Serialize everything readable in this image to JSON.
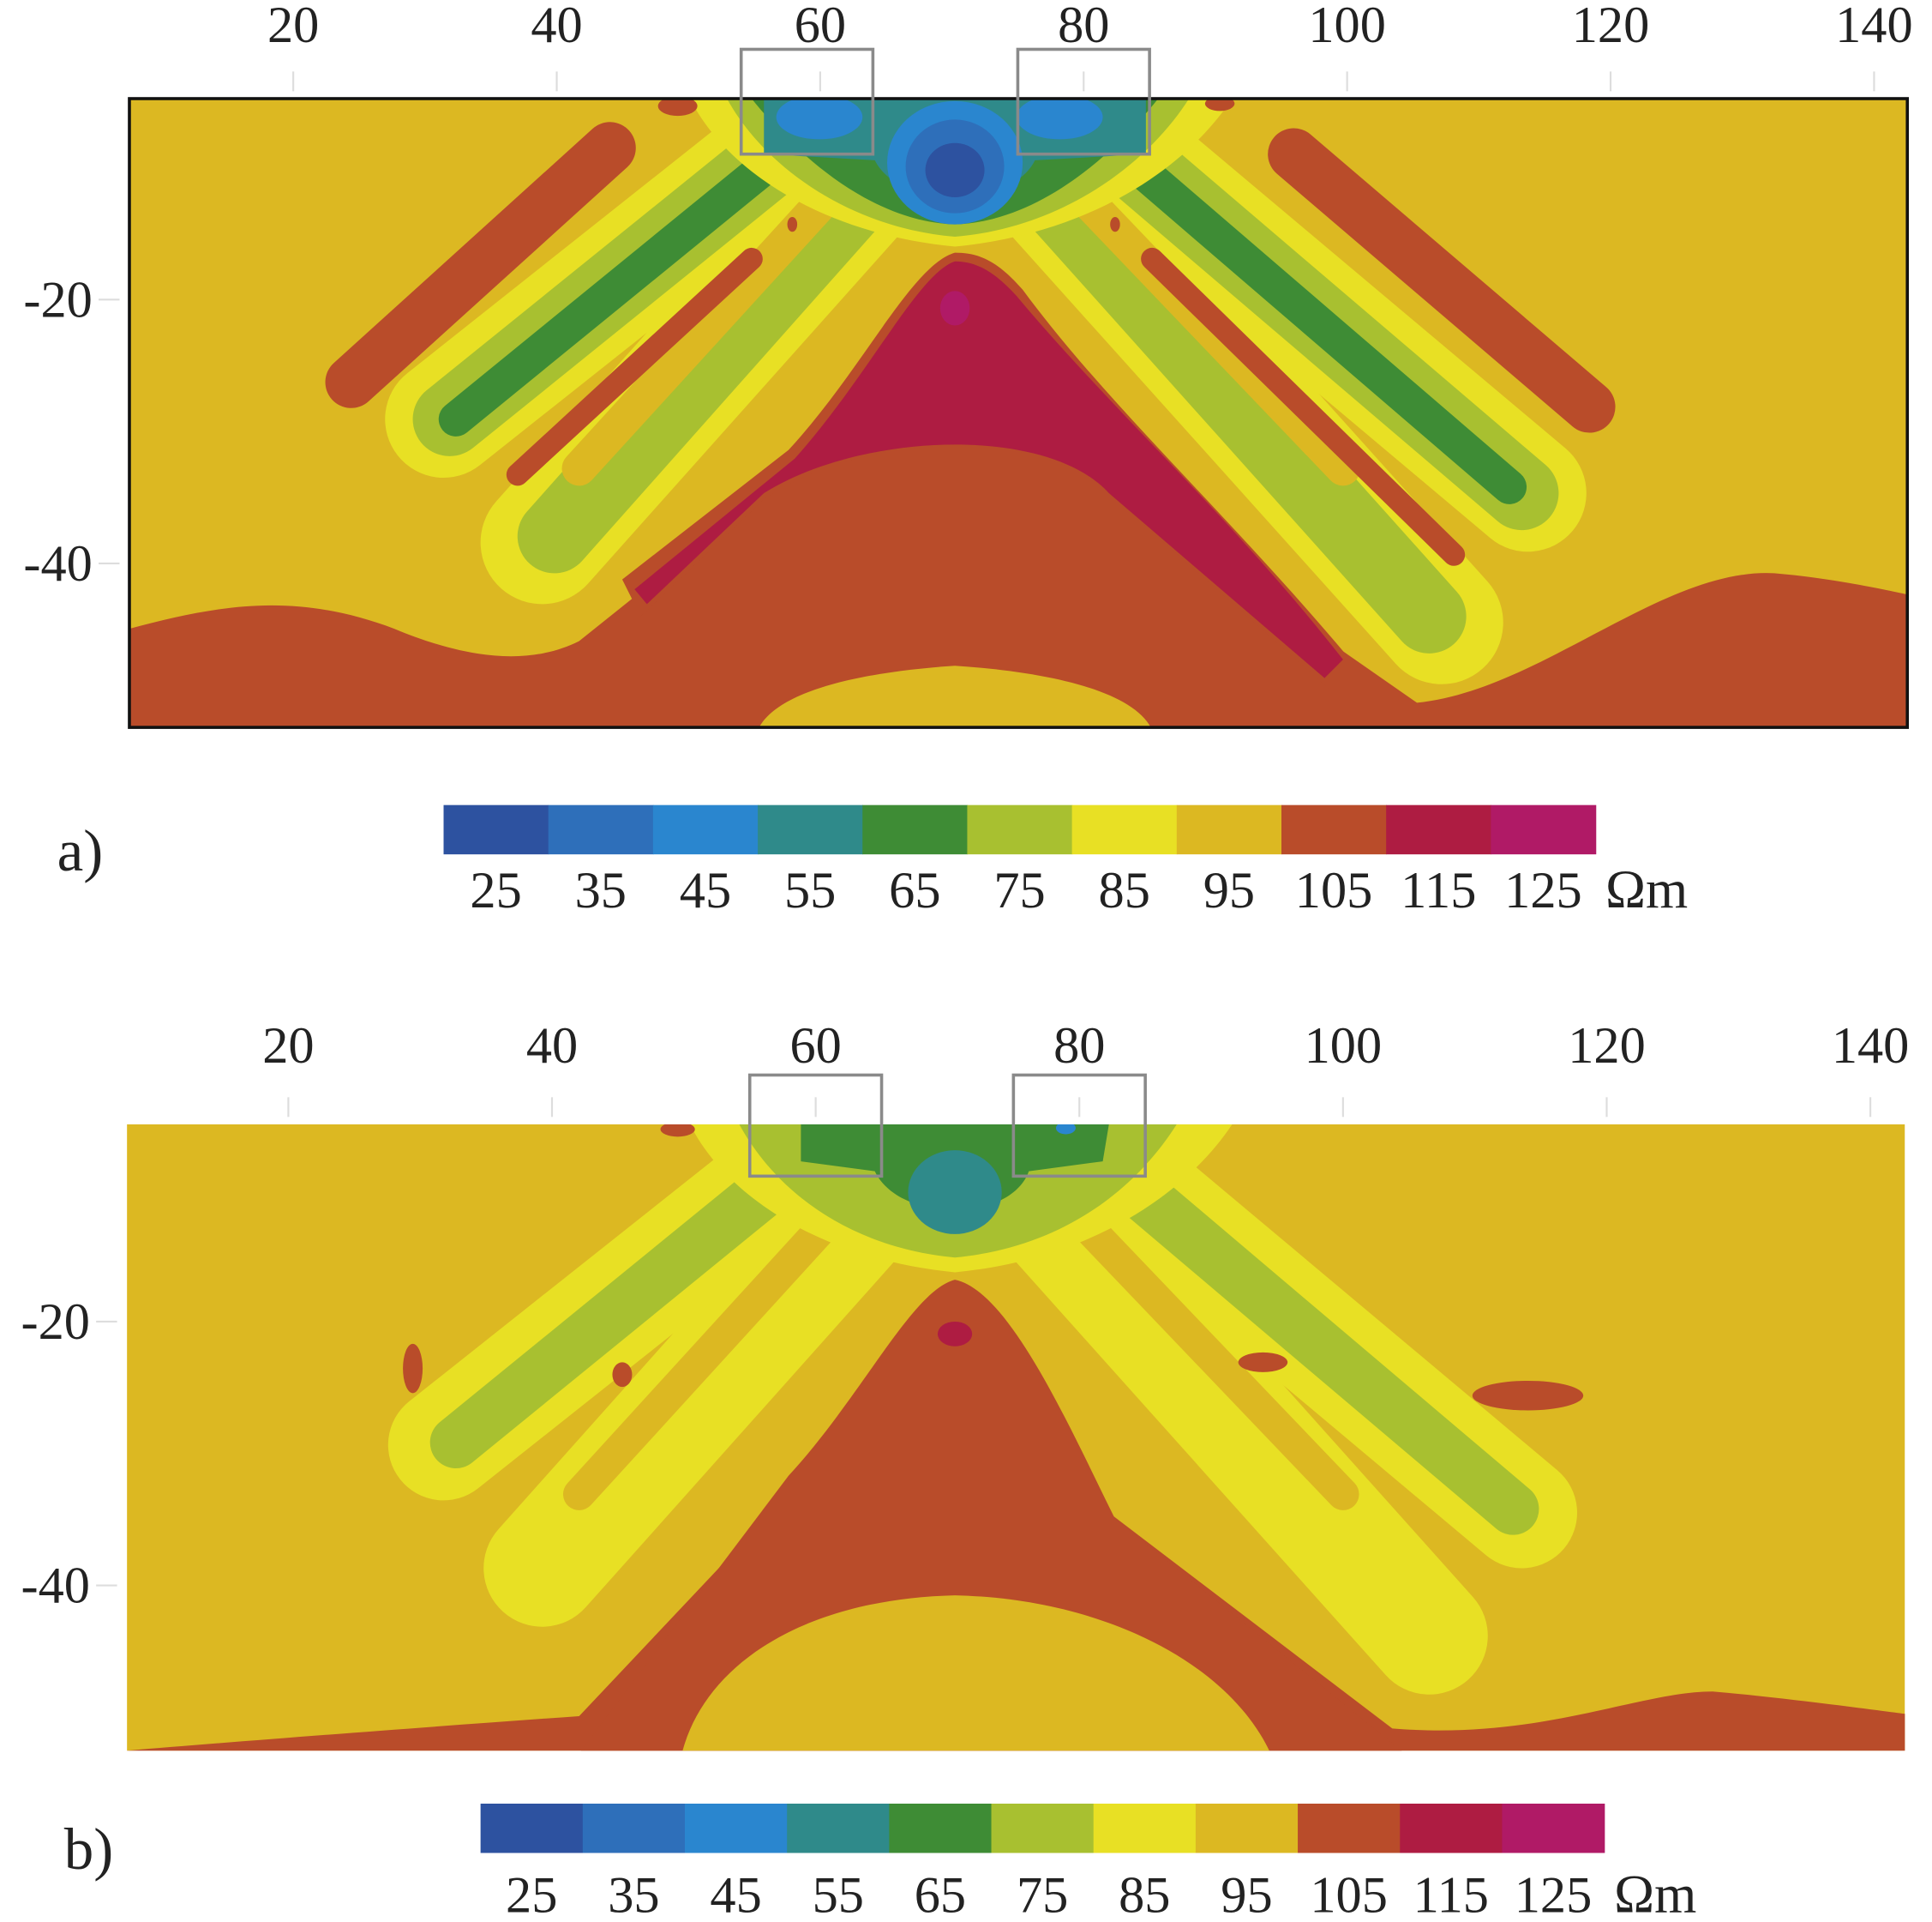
{
  "chart_data": [
    {
      "type": "heatmap",
      "panel_label": "a)",
      "x_ticks": [
        20,
        40,
        60,
        80,
        100,
        120,
        140
      ],
      "y_ticks": [
        -20,
        -40
      ],
      "xlim": [
        7.6,
        142.9
      ],
      "ylim": [
        -52.4,
        -4.8
      ],
      "x_axis_position": "top",
      "grid": false,
      "colorbar": {
        "levels": [
          25,
          35,
          45,
          55,
          65,
          75,
          85,
          95,
          105,
          115,
          125
        ],
        "unit": "Ωm",
        "colors": [
          "#2d52a0",
          "#2e6fba",
          "#2a86cf",
          "#2f8a8a",
          "#3e8c35",
          "#a8c030",
          "#e8e024",
          "#dcb822",
          "#b94c2a",
          "#ae1c42",
          "#b01a66"
        ],
        "placement": "bottom"
      },
      "annotation_boxes_x": [
        [
          54,
          64
        ],
        [
          75,
          85
        ]
      ],
      "description_values": {
        "background": 95,
        "minimum_center": 25,
        "maximum_center": 125
      }
    },
    {
      "type": "heatmap",
      "panel_label": "b)",
      "x_ticks": [
        20,
        40,
        60,
        80,
        100,
        120,
        140
      ],
      "y_ticks": [
        -20,
        -40
      ],
      "xlim": [
        7.6,
        142.9
      ],
      "ylim": [
        -52.4,
        -4.8
      ],
      "x_axis_position": "top",
      "grid": false,
      "colorbar": {
        "levels": [
          25,
          35,
          45,
          55,
          65,
          75,
          85,
          95,
          105,
          115,
          125
        ],
        "unit": "Ωm",
        "colors": [
          "#2d52a0",
          "#2e6fba",
          "#2a86cf",
          "#2f8a8a",
          "#3e8c35",
          "#a8c030",
          "#e8e024",
          "#dcb822",
          "#b94c2a",
          "#ae1c42",
          "#b01a66"
        ],
        "placement": "bottom"
      },
      "annotation_boxes_x": [
        [
          55,
          65
        ],
        [
          75,
          85
        ]
      ],
      "description_values": {
        "background": 95,
        "minimum_center": 55,
        "maximum_center": 115
      }
    }
  ]
}
